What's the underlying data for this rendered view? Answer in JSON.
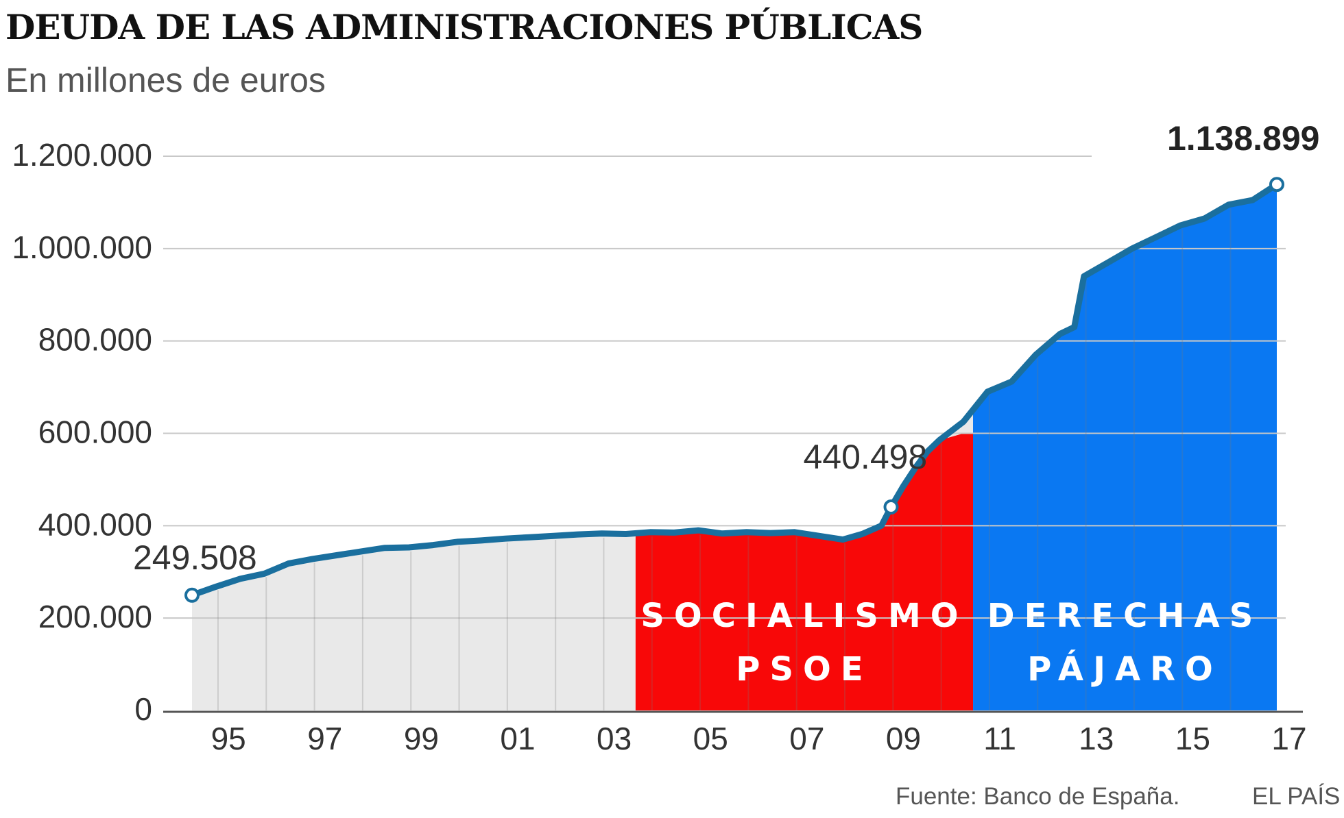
{
  "header": {
    "title": "DEUDA DE LAS ADMINISTRACIONES PÚBLICAS",
    "subtitle": "En millones de euros"
  },
  "footer": {
    "source": "Fuente: Banco de España.",
    "brand": "EL PAÍS"
  },
  "colors": {
    "line": "#1a6f9e",
    "area_gray": "#e9e9e9",
    "area_red": "#f80808",
    "area_blue": "#0a78f2",
    "grid": "#c8c8c8",
    "text": "#333333"
  },
  "chart_data": {
    "type": "area",
    "title": "DEUDA DE LAS ADMINISTRACIONES PÚBLICAS",
    "subtitle": "En millones de euros",
    "xlabel": "",
    "ylabel": "",
    "xlim": [
      1994.5,
      2017.1
    ],
    "ylim": [
      0,
      1200000
    ],
    "grid": true,
    "y_ticks": [
      0,
      200000,
      400000,
      600000,
      800000,
      1000000,
      1200000
    ],
    "y_tick_labels": [
      "0",
      "200.000",
      "400.000",
      "600.000",
      "800.000",
      "1.000.000",
      "1.200.000"
    ],
    "x_ticks": [
      1995,
      1997,
      1999,
      2001,
      2003,
      2005,
      2007,
      2009,
      2011,
      2013,
      2015,
      2017
    ],
    "x_tick_labels": [
      "95",
      "97",
      "99",
      "01",
      "03",
      "05",
      "07",
      "09",
      "11",
      "13",
      "15",
      "17"
    ],
    "series": [
      {
        "points": [
          [
            1994.5,
            249508
          ],
          [
            1995.0,
            268000
          ],
          [
            1995.5,
            285000
          ],
          [
            1996.0,
            296000
          ],
          [
            1996.5,
            318000
          ],
          [
            1997.0,
            328000
          ],
          [
            1997.5,
            336000
          ],
          [
            1998.0,
            344000
          ],
          [
            1998.5,
            352000
          ],
          [
            1999.0,
            353000
          ],
          [
            1999.5,
            358000
          ],
          [
            2000.0,
            365000
          ],
          [
            2000.5,
            368000
          ],
          [
            2001.0,
            372000
          ],
          [
            2001.5,
            375000
          ],
          [
            2002.0,
            378000
          ],
          [
            2002.5,
            381000
          ],
          [
            2003.0,
            383000
          ],
          [
            2003.5,
            382000
          ],
          [
            2004.0,
            386000
          ],
          [
            2004.5,
            385000
          ],
          [
            2005.0,
            390000
          ],
          [
            2005.5,
            383000
          ],
          [
            2006.0,
            386000
          ],
          [
            2006.5,
            384000
          ],
          [
            2007.0,
            386000
          ],
          [
            2007.5,
            378000
          ],
          [
            2008.0,
            370000
          ],
          [
            2008.4,
            382000
          ],
          [
            2008.8,
            400000
          ],
          [
            2009.0,
            440498
          ],
          [
            2009.25,
            485000
          ],
          [
            2009.5,
            525000
          ],
          [
            2009.75,
            560000
          ],
          [
            2010.0,
            585000
          ],
          [
            2010.5,
            625000
          ],
          [
            2011.0,
            690000
          ],
          [
            2011.5,
            712000
          ],
          [
            2012.0,
            770000
          ],
          [
            2012.5,
            815000
          ],
          [
            2012.8,
            830000
          ],
          [
            2013.0,
            940000
          ],
          [
            2013.5,
            970000
          ],
          [
            2014.0,
            1000000
          ],
          [
            2014.5,
            1025000
          ],
          [
            2015.0,
            1050000
          ],
          [
            2015.5,
            1065000
          ],
          [
            2016.0,
            1095000
          ],
          [
            2016.5,
            1105000
          ],
          [
            2017.0,
            1138899
          ]
        ]
      }
    ],
    "regions": [
      {
        "label": "",
        "from": 1994.5,
        "to": 2003.7,
        "color": "#e9e9e9"
      },
      {
        "label": "SOCIALISMO\nPSOE",
        "from": 2003.7,
        "to": 2010.7,
        "color": "#f80808",
        "cap": 600000
      },
      {
        "label": "DERECHAS\nPÁJARO",
        "from": 2010.7,
        "to": 2017.0,
        "color": "#0a78f2"
      }
    ],
    "annotations": [
      {
        "text": "249.508",
        "x": 1994.5,
        "y": 249508,
        "bold": false
      },
      {
        "text": "440.498",
        "x": 2009.0,
        "y": 440498,
        "bold": false
      },
      {
        "text": "1.138.899",
        "x": 2017.0,
        "y": 1138899,
        "bold": true
      }
    ]
  }
}
